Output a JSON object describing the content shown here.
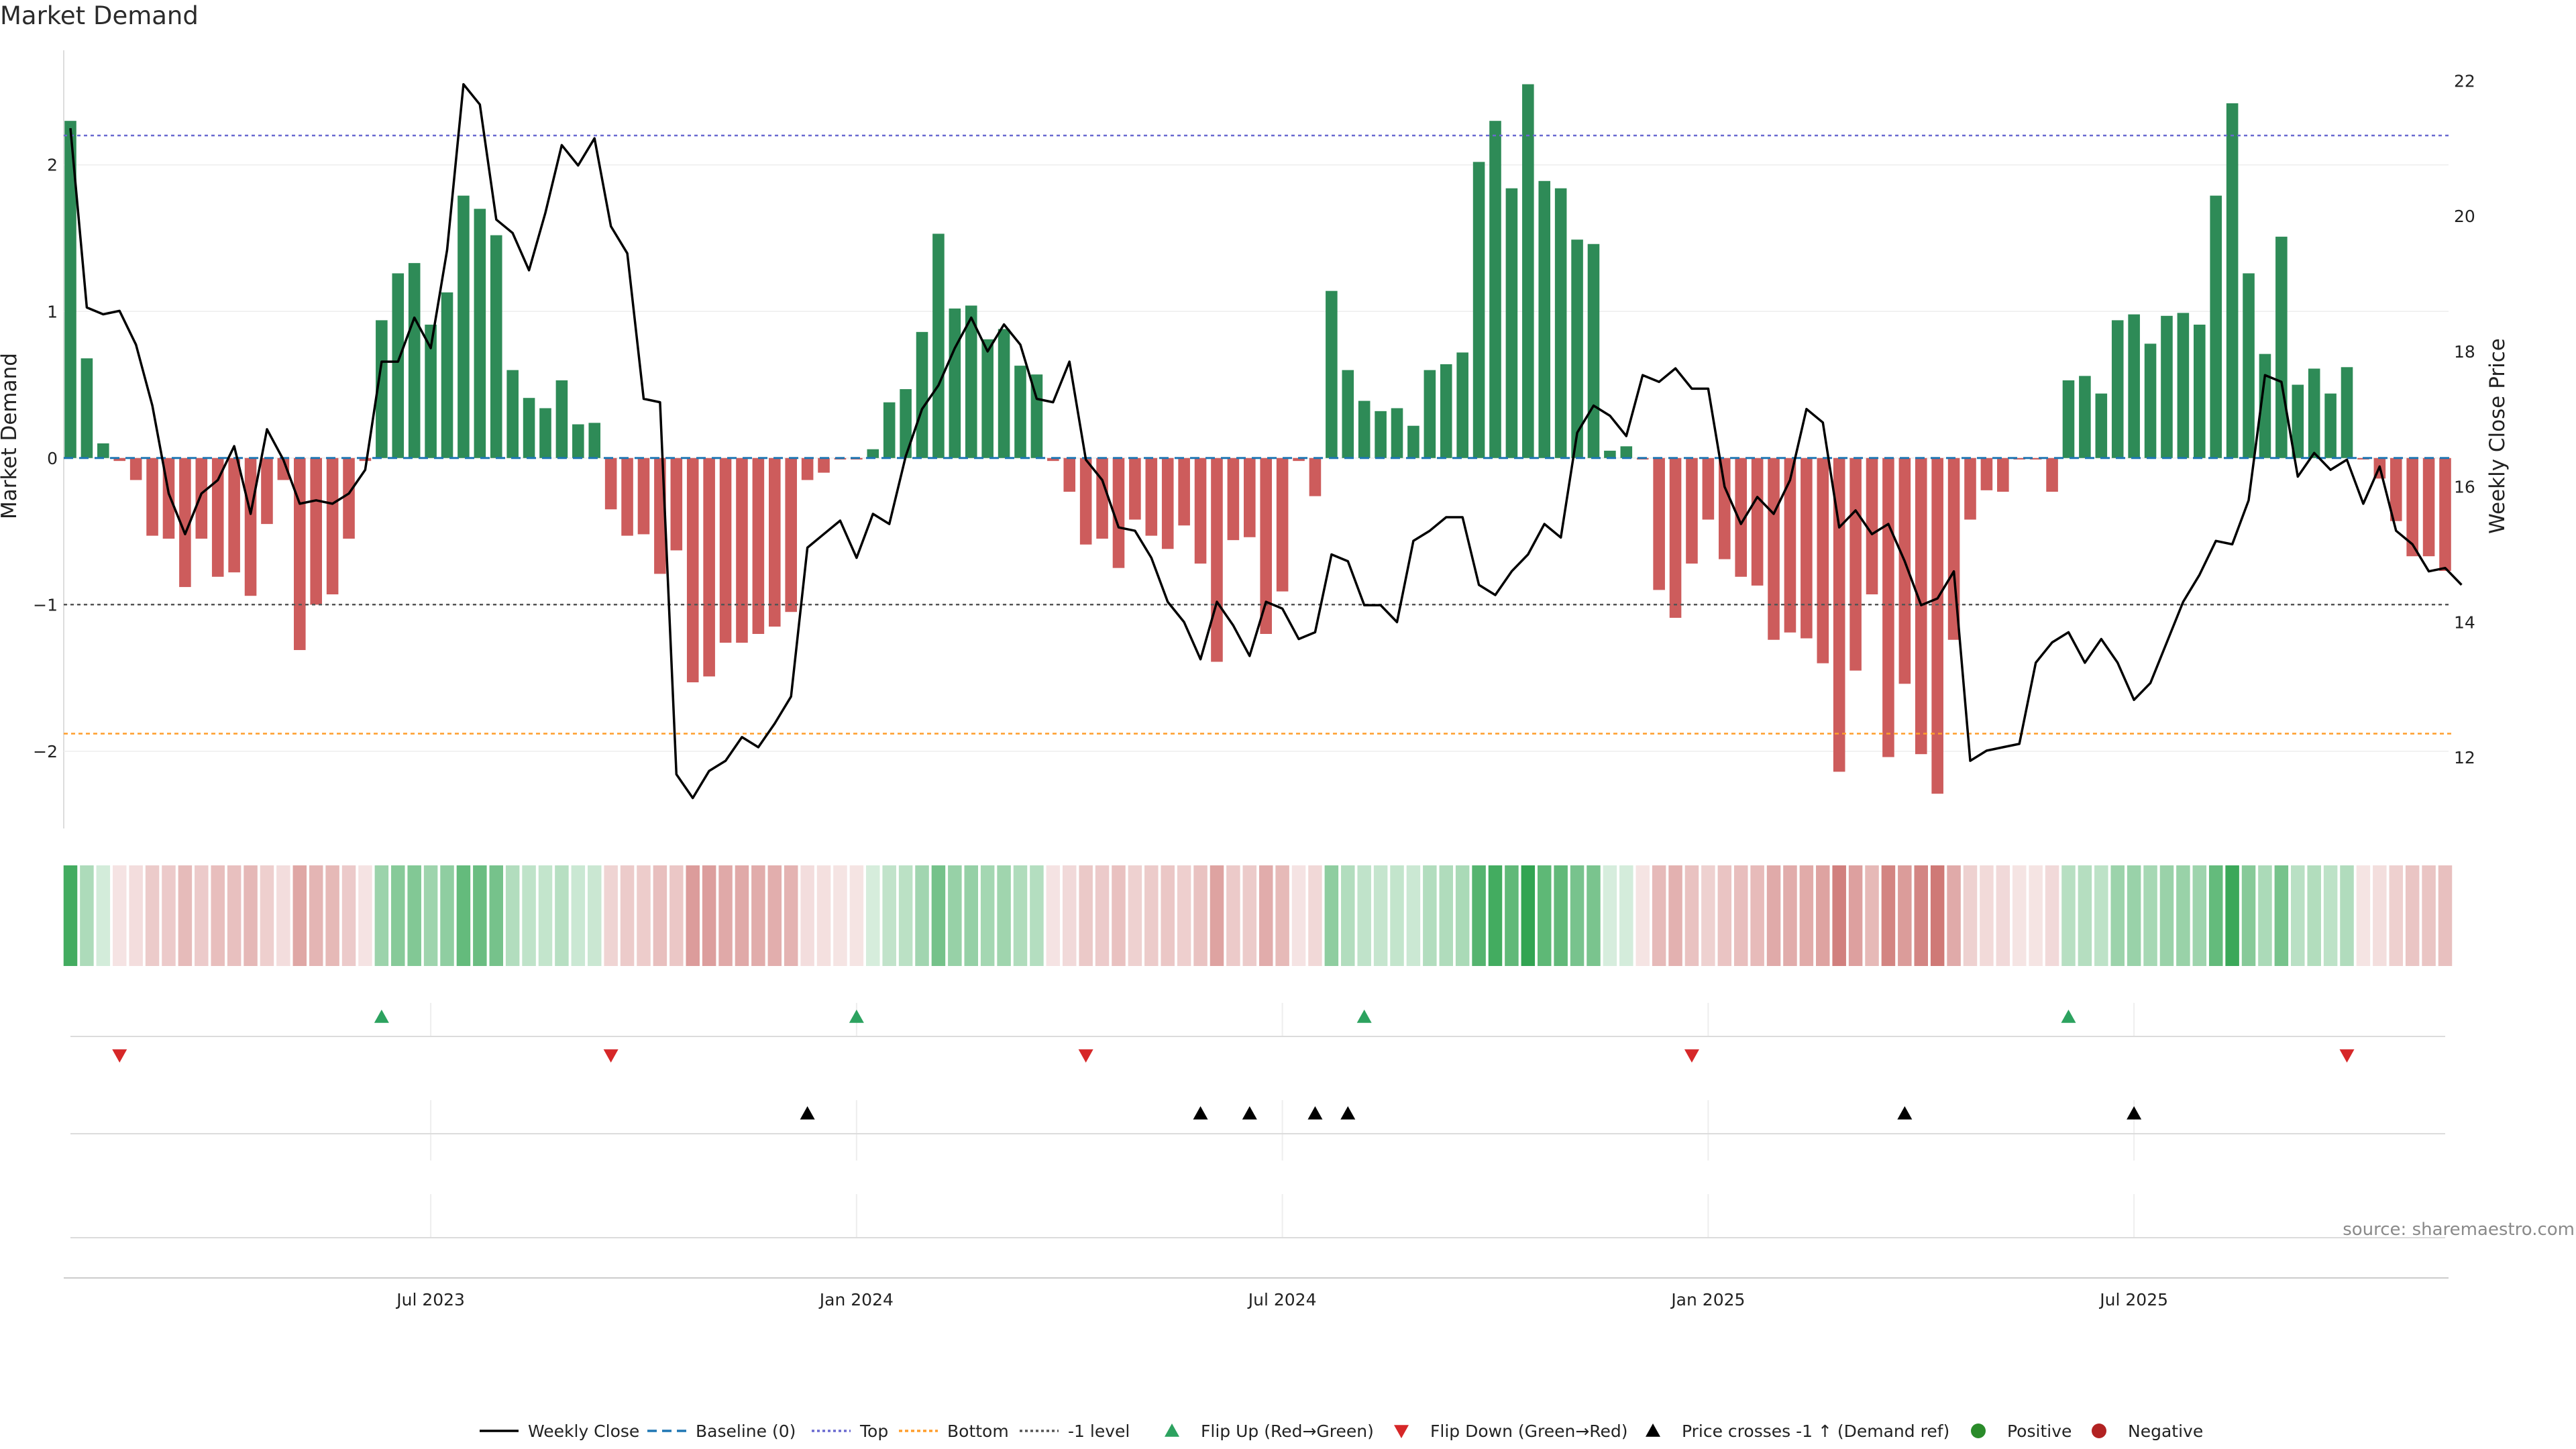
{
  "title": "Market Demand",
  "source": "source: sharemaestro.com",
  "colors": {
    "positive": "#2e8b57",
    "negative": "#cd5c5c",
    "price": "#000000",
    "baseline": "#1f77b4",
    "top": "#6a6ad0",
    "bottom": "#ff9e2c",
    "neg1": "#555555",
    "flip_up": "#2ca25f",
    "flip_down": "#d62728",
    "cross": "#000000",
    "pos_dot": "#2a8b2a",
    "neg_dot": "#b22222"
  },
  "chart_data": {
    "type": "bar",
    "title": "Market Demand",
    "ylabel_left": "Market Demand",
    "ylabel_right": "Weekly Close Price",
    "ylim_left": [
      -2.55,
      2.85
    ],
    "ylim_right": [
      10.9,
      22.6
    ],
    "left_ticks": [
      {
        "v": 2,
        "label": "2"
      },
      {
        "v": 1,
        "label": "1"
      },
      {
        "v": 0,
        "label": "0"
      },
      {
        "v": -1,
        "label": "−1"
      },
      {
        "v": -2,
        "label": "−2"
      }
    ],
    "right_ticks": [
      {
        "v": 22,
        "label": "22"
      },
      {
        "v": 20,
        "label": "20"
      },
      {
        "v": 18,
        "label": "18"
      },
      {
        "v": 16,
        "label": "16"
      },
      {
        "v": 14,
        "label": "14"
      },
      {
        "v": 12,
        "label": "12"
      }
    ],
    "x_ticks": [
      {
        "i": 22,
        "label": "Jul 2023"
      },
      {
        "i": 48,
        "label": "Jan 2024"
      },
      {
        "i": 74,
        "label": "Jul 2024"
      },
      {
        "i": 100,
        "label": "Jan 2025"
      },
      {
        "i": 126,
        "label": "Jul 2025"
      }
    ],
    "reference_lines": {
      "baseline": 0,
      "top": 2.2,
      "bottom": -1.88,
      "minus_one": -1
    },
    "demand": [
      2.3,
      0.68,
      0.1,
      -0.02,
      -0.15,
      -0.53,
      -0.55,
      -0.88,
      -0.55,
      -0.81,
      -0.78,
      -0.94,
      -0.45,
      -0.15,
      -1.31,
      -1.0,
      -0.93,
      -0.55,
      -0.02,
      0.94,
      1.26,
      1.33,
      0.91,
      1.13,
      1.79,
      1.7,
      1.52,
      0.6,
      0.41,
      0.34,
      0.53,
      0.23,
      0.24,
      -0.35,
      -0.53,
      -0.52,
      -0.79,
      -0.63,
      -1.53,
      -1.49,
      -1.26,
      -1.26,
      -1.2,
      -1.15,
      -1.05,
      -0.15,
      -0.1,
      -0.01,
      -0.01,
      0.06,
      0.38,
      0.47,
      0.86,
      1.53,
      1.02,
      1.04,
      0.81,
      0.88,
      0.63,
      0.57,
      -0.02,
      -0.23,
      -0.59,
      -0.55,
      -0.75,
      -0.42,
      -0.53,
      -0.62,
      -0.46,
      -0.72,
      -1.39,
      -0.56,
      -0.54,
      -1.2,
      -0.91,
      -0.02,
      -0.26,
      1.14,
      0.6,
      0.39,
      0.32,
      0.34,
      0.22,
      0.6,
      0.64,
      0.72,
      2.02,
      2.3,
      1.84,
      2.55,
      1.89,
      1.84,
      1.49,
      1.46,
      0.05,
      0.08,
      -0.01,
      -0.9,
      -1.09,
      -0.72,
      -0.42,
      -0.69,
      -0.81,
      -0.87,
      -1.24,
      -1.19,
      -1.23,
      -1.4,
      -2.14,
      -1.45,
      -0.93,
      -2.04,
      -1.54,
      -2.02,
      -2.29,
      -1.24,
      -0.42,
      -0.22,
      -0.23,
      -0.01,
      -0.01,
      -0.23,
      0.53,
      0.56,
      0.44,
      0.94,
      0.98,
      0.78,
      0.97,
      0.99,
      0.91,
      1.79,
      2.42,
      1.26,
      0.71,
      1.51,
      0.5,
      0.61,
      0.44,
      0.62,
      -0.01,
      -0.14,
      -0.43,
      -0.67,
      -0.67,
      -0.77
    ],
    "price": [
      21.3,
      18.65,
      18.55,
      18.6,
      18.1,
      17.2,
      15.9,
      15.3,
      15.9,
      16.1,
      16.6,
      15.6,
      16.85,
      16.4,
      15.75,
      15.8,
      15.75,
      15.9,
      16.25,
      17.85,
      17.85,
      18.5,
      18.05,
      19.5,
      21.95,
      21.65,
      19.95,
      19.75,
      19.2,
      20.05,
      21.05,
      20.75,
      21.15,
      19.85,
      19.45,
      17.3,
      17.25,
      11.75,
      11.4,
      11.8,
      11.95,
      12.3,
      12.15,
      12.5,
      12.9,
      15.1,
      15.3,
      15.5,
      14.95,
      15.6,
      15.45,
      16.45,
      17.15,
      17.5,
      18.05,
      18.5,
      18.0,
      18.4,
      18.1,
      17.3,
      17.25,
      17.85,
      16.4,
      16.1,
      15.4,
      15.35,
      14.95,
      14.3,
      14.0,
      13.45,
      14.3,
      13.95,
      13.5,
      14.3,
      14.2,
      13.75,
      13.85,
      15.0,
      14.9,
      14.25,
      14.25,
      14.0,
      15.2,
      15.35,
      15.55,
      15.55,
      14.55,
      14.4,
      14.75,
      15.0,
      15.45,
      15.25,
      16.8,
      17.2,
      17.05,
      16.75,
      17.65,
      17.55,
      17.75,
      17.45,
      17.45,
      16.0,
      15.45,
      15.85,
      15.6,
      16.1,
      17.15,
      16.95,
      15.4,
      15.65,
      15.3,
      15.45,
      14.9,
      14.25,
      14.35,
      14.75,
      11.95,
      12.1,
      12.15,
      12.2,
      13.4,
      13.7,
      13.85,
      13.4,
      13.75,
      13.4,
      12.85,
      13.1,
      13.7,
      14.3,
      14.7,
      15.2,
      15.15,
      15.8,
      17.65,
      17.55,
      16.15,
      16.5,
      16.25,
      16.4,
      15.75,
      16.3,
      15.35,
      15.15,
      14.75,
      14.8,
      14.55
    ],
    "flip_up": [
      19,
      48,
      79,
      122
    ],
    "flip_down": [
      3,
      33,
      62,
      99,
      139
    ],
    "price_cross_up": [
      45,
      69,
      72,
      76,
      78,
      112,
      126
    ],
    "legend": [
      "Weekly Close",
      "Baseline (0)",
      "Top",
      "Bottom",
      "-1 level",
      "Flip Up (Red→Green)",
      "Flip Down (Green→Red)",
      "Price crosses -1 ↑ (Demand ref)",
      "Positive",
      "Negative"
    ]
  }
}
